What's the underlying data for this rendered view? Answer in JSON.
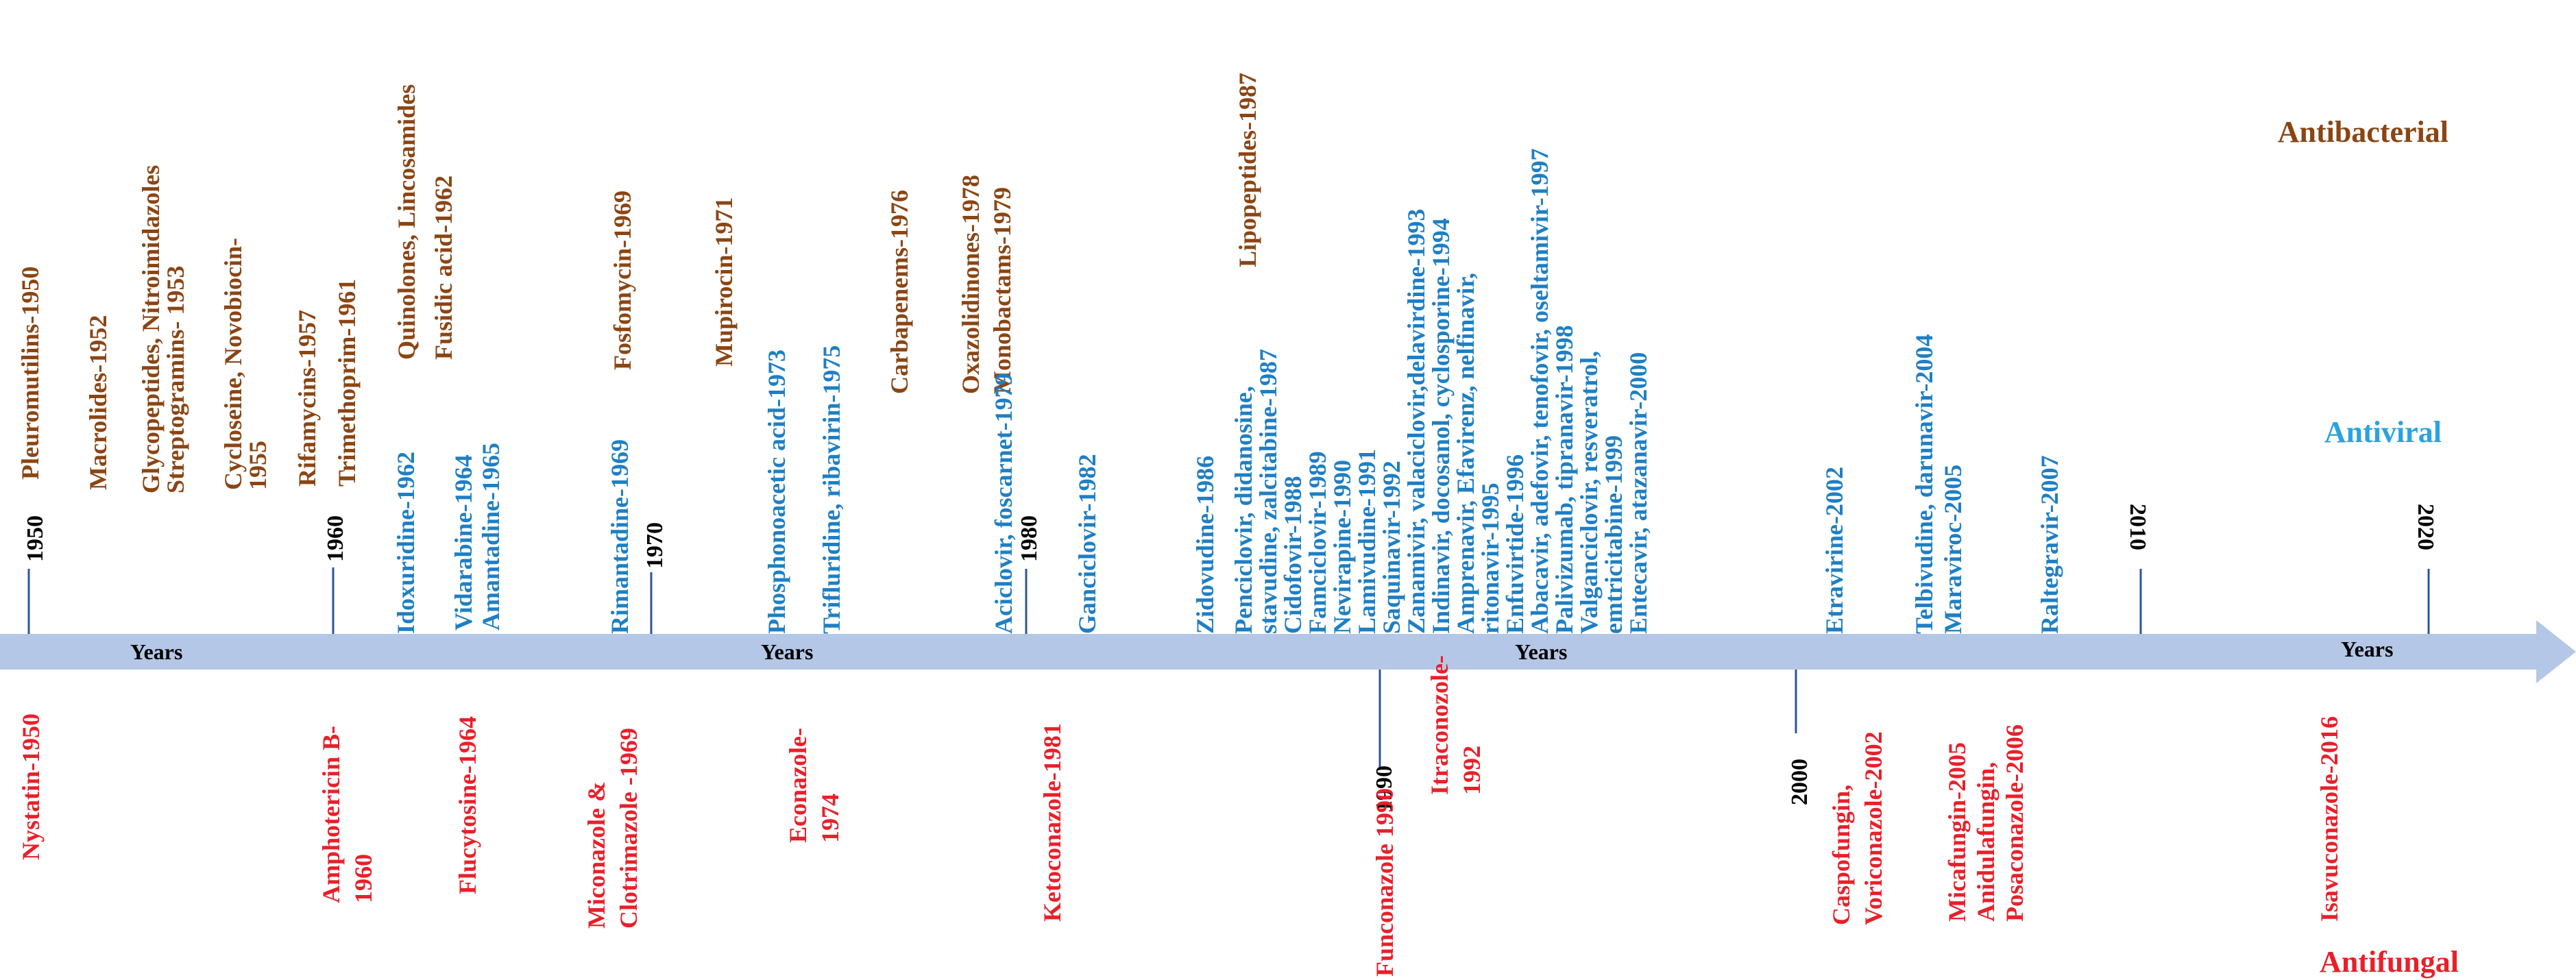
{
  "legend": {
    "antibacterial": "Antibacterial",
    "antiviral": "Antiviral",
    "antifungal": "Antifungal"
  },
  "colors": {
    "antibacterial": "#8B4513",
    "antiviral": "#1E7FC4",
    "antiviral_legend": "#2AA3E0",
    "antifungal": "#E8202A",
    "year_marker": "#000000",
    "axis": "#B4C7E7",
    "tick": "#2F5597"
  },
  "axis_label": "Years",
  "years": [
    "1950",
    "1960",
    "1970",
    "1980",
    "1990",
    "2000",
    "2010",
    "2020"
  ],
  "antibacterial_labels": [
    [
      "Pleuromutilins-1950"
    ],
    [
      "Macrolides-1952"
    ],
    [
      "Glycopeptides, Nitroimidazoles",
      "Streptogramins- 1953"
    ],
    [
      "Cycloseine, Novobiocin-",
      "1955"
    ],
    [
      "Rifamycins-1957",
      "Trimethoprim-1961"
    ],
    [
      "Quinolones, Lincosamides",
      "Fusidic acid-1962"
    ],
    [
      "Fosfomycin-1969"
    ],
    [
      "Mupirocin-1971"
    ],
    [
      "Carbapenems-1976"
    ],
    [
      "Oxazolidinones-1978",
      "Monobactams-1979"
    ],
    [
      "Lipopeptides-1987"
    ]
  ],
  "antiviral_labels": [
    [
      "Idoxuridine-1962"
    ],
    [
      "Vidarabine-1964",
      "Amantadine-1965"
    ],
    [
      "Rimantadine-1969"
    ],
    [
      "Phosphonoacetic acid-1973"
    ],
    [
      "Trifluridine, ribavirin-1975"
    ],
    [
      "Aciclovir, foscarnet-1979"
    ],
    [
      "Ganciclovir-1982"
    ],
    [
      "Zidovudine-1986"
    ],
    [
      "Penciclovir, didanosine,",
      "stavudine, zalcitabine-1987",
      "Cidofovir-1988",
      "Famciclovir-1989",
      "Nevirapine-1990",
      "Lamivudine-1991",
      "Saquinavir-1992",
      "Zanamivir, valaciclovir,delavirdine-1993",
      "Indinavir, docosanol, cyclosporine-1994",
      "Amprenavir, Efavirenz, nelfinavir,",
      "ritonavir-1995",
      "Enfuvirtide-1996",
      "Abacavir, adefovir, tenofovir, oseltamivir-1997",
      "Palivizumab, tipranavir-1998",
      "Valganciclovir, resveratrol,",
      "emtricitabine-1999",
      "Entecavir, atazanavir-2000"
    ],
    [
      "Etravirine-2002"
    ],
    [
      "Telbivudine, darunavir-2004",
      "Maraviroc-2005"
    ],
    [
      "Raltegravir-2007"
    ]
  ],
  "antifungal_labels": [
    [
      "Nystatin-1950"
    ],
    [
      "Amphotericin B-",
      "1960"
    ],
    [
      "Flucytosine-1964"
    ],
    [
      "Miconazole &",
      "Clotrimazole -1969"
    ],
    [
      "Econazole-",
      "1974"
    ],
    [
      "Ketoconazole-1981"
    ],
    [
      "Funconazole 1990"
    ],
    [
      "Itraconozole-",
      "1992"
    ],
    [
      "Caspofungin,",
      "Voriconazole-2002"
    ],
    [
      "Micafungin-2005",
      "Anidulafungin,",
      "Posaconazole-2006"
    ],
    [
      "Isavuconazole-2016"
    ]
  ]
}
